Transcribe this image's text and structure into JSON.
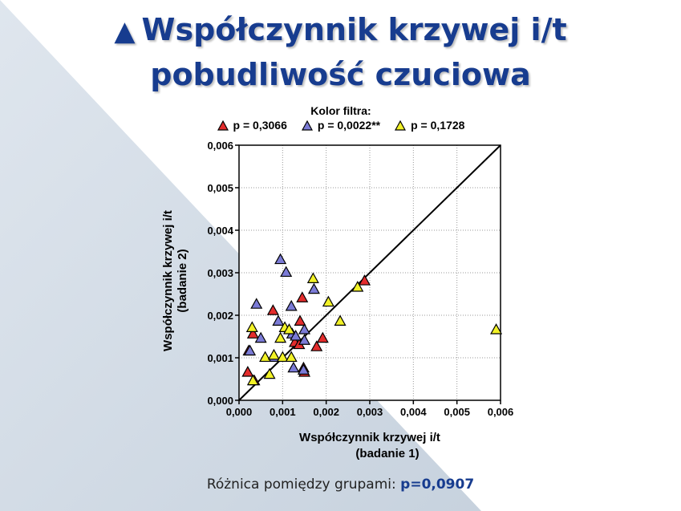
{
  "slide": {
    "title_line1": "Współczynnik krzywej i/t",
    "title_line2": "pobudliwość czuciowa",
    "bullet": "▲",
    "footnote_label": "Różnica pomiędzy grupami:",
    "footnote_value": "p=0,0907"
  },
  "colors": {
    "title": "#173c8f",
    "red": "#e32c2c",
    "blue": "#7b7bd6",
    "yellow": "#f2f227"
  },
  "chart_data": {
    "type": "scatter",
    "legend_title": "Kolor filtra:",
    "legend_position": "top",
    "xlabel_line1": "Współczynnik krzywej i/t",
    "xlabel_line2": "(badanie 1)",
    "ylabel_line1": "Współczynnik krzywej i/t",
    "ylabel_line2": "(badanie 2)",
    "xlim": [
      0,
      0.006
    ],
    "ylim": [
      0,
      0.006
    ],
    "x_ticks": [
      "0,000",
      "0,001",
      "0,002",
      "0,003",
      "0,004",
      "0,005",
      "0,006"
    ],
    "y_ticks": [
      "0,000",
      "0,001",
      "0,002",
      "0,003",
      "0,004",
      "0,005",
      "0,006"
    ],
    "grid": true,
    "reference_line": "y = x",
    "series": [
      {
        "name": "p = 0,3066",
        "color": "red",
        "points": [
          [
            0.0002,
            0.00065
          ],
          [
            0.00022,
            0.00115
          ],
          [
            0.00032,
            0.00155
          ],
          [
            0.00035,
            0.00045
          ],
          [
            0.00078,
            0.0021
          ],
          [
            0.00128,
            0.00135
          ],
          [
            0.00138,
            0.0013
          ],
          [
            0.0014,
            0.00185
          ],
          [
            0.00145,
            0.0024
          ],
          [
            0.00148,
            0.00075
          ],
          [
            0.0015,
            0.00065
          ],
          [
            0.00178,
            0.00125
          ],
          [
            0.00192,
            0.00145
          ],
          [
            0.00288,
            0.0028
          ]
        ]
      },
      {
        "name": "p = 0,0022**",
        "color": "blue",
        "points": [
          [
            0.00025,
            0.00115
          ],
          [
            0.0004,
            0.00225
          ],
          [
            0.0005,
            0.00145
          ],
          [
            0.0008,
            0.001
          ],
          [
            0.00095,
            0.0033
          ],
          [
            0.0009,
            0.00185
          ],
          [
            0.00108,
            0.003
          ],
          [
            0.0012,
            0.0022
          ],
          [
            0.00122,
            0.00155
          ],
          [
            0.00125,
            0.00075
          ],
          [
            0.0013,
            0.0015
          ],
          [
            0.0015,
            0.0014
          ],
          [
            0.0015,
            0.00165
          ],
          [
            0.00172,
            0.0026
          ],
          [
            0.00148,
            0.0007
          ]
        ]
      },
      {
        "name": "p = 0,1728",
        "color": "yellow",
        "points": [
          [
            0.0003,
            0.0017
          ],
          [
            0.00032,
            0.00045
          ],
          [
            0.0006,
            0.001
          ],
          [
            0.0007,
            0.0006
          ],
          [
            0.0008,
            0.00105
          ],
          [
            0.00095,
            0.00145
          ],
          [
            0.001,
            0.001
          ],
          [
            0.00105,
            0.0017
          ],
          [
            0.00115,
            0.00165
          ],
          [
            0.0012,
            0.001
          ],
          [
            0.0017,
            0.00285
          ],
          [
            0.00205,
            0.0023
          ],
          [
            0.00232,
            0.00185
          ],
          [
            0.00272,
            0.00265
          ],
          [
            0.0059,
            0.00165
          ]
        ]
      }
    ]
  }
}
